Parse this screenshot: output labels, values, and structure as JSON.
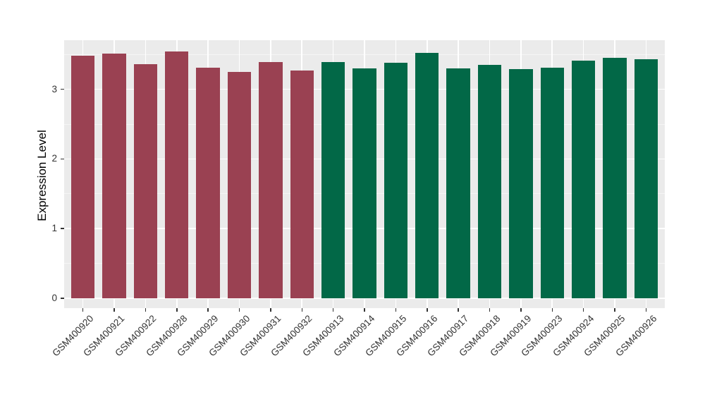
{
  "figure": {
    "background": "#FFFFFF"
  },
  "chart_data": {
    "type": "bar",
    "title": "",
    "ylabel": "Expression Level",
    "xlabel": "",
    "ylim": [
      0,
      3.7
    ],
    "yticks": [
      0,
      1,
      2,
      3
    ],
    "y_minor_ticks": [
      0.5,
      1.5,
      2.5,
      3.5
    ],
    "grid": true,
    "legend": "none",
    "panel_background": "#EBEBEB",
    "grid_major_color": "#FFFFFF",
    "grid_minor_color": "#F5F5F5",
    "axis_text_color": "#333333",
    "tick_mark_color": "#333333",
    "group_colors": {
      "left_group": "#9A4152",
      "right_group": "#026847"
    },
    "categories": [
      "GSM400920",
      "GSM400921",
      "GSM400922",
      "GSM400928",
      "GSM400929",
      "GSM400930",
      "GSM400931",
      "GSM400932",
      "GSM400913",
      "GSM400914",
      "GSM400915",
      "GSM400916",
      "GSM400917",
      "GSM400918",
      "GSM400919",
      "GSM400923",
      "GSM400924",
      "GSM400925",
      "GSM400926"
    ],
    "values": [
      3.48,
      3.51,
      3.36,
      3.54,
      3.31,
      3.25,
      3.39,
      3.27,
      3.39,
      3.3,
      3.38,
      3.52,
      3.3,
      3.35,
      3.29,
      3.31,
      3.41,
      3.45,
      3.43
    ],
    "bar_colors": [
      "#9A4152",
      "#9A4152",
      "#9A4152",
      "#9A4152",
      "#9A4152",
      "#9A4152",
      "#9A4152",
      "#9A4152",
      "#026847",
      "#026847",
      "#026847",
      "#026847",
      "#026847",
      "#026847",
      "#026847",
      "#026847",
      "#026847",
      "#026847",
      "#026847"
    ]
  }
}
